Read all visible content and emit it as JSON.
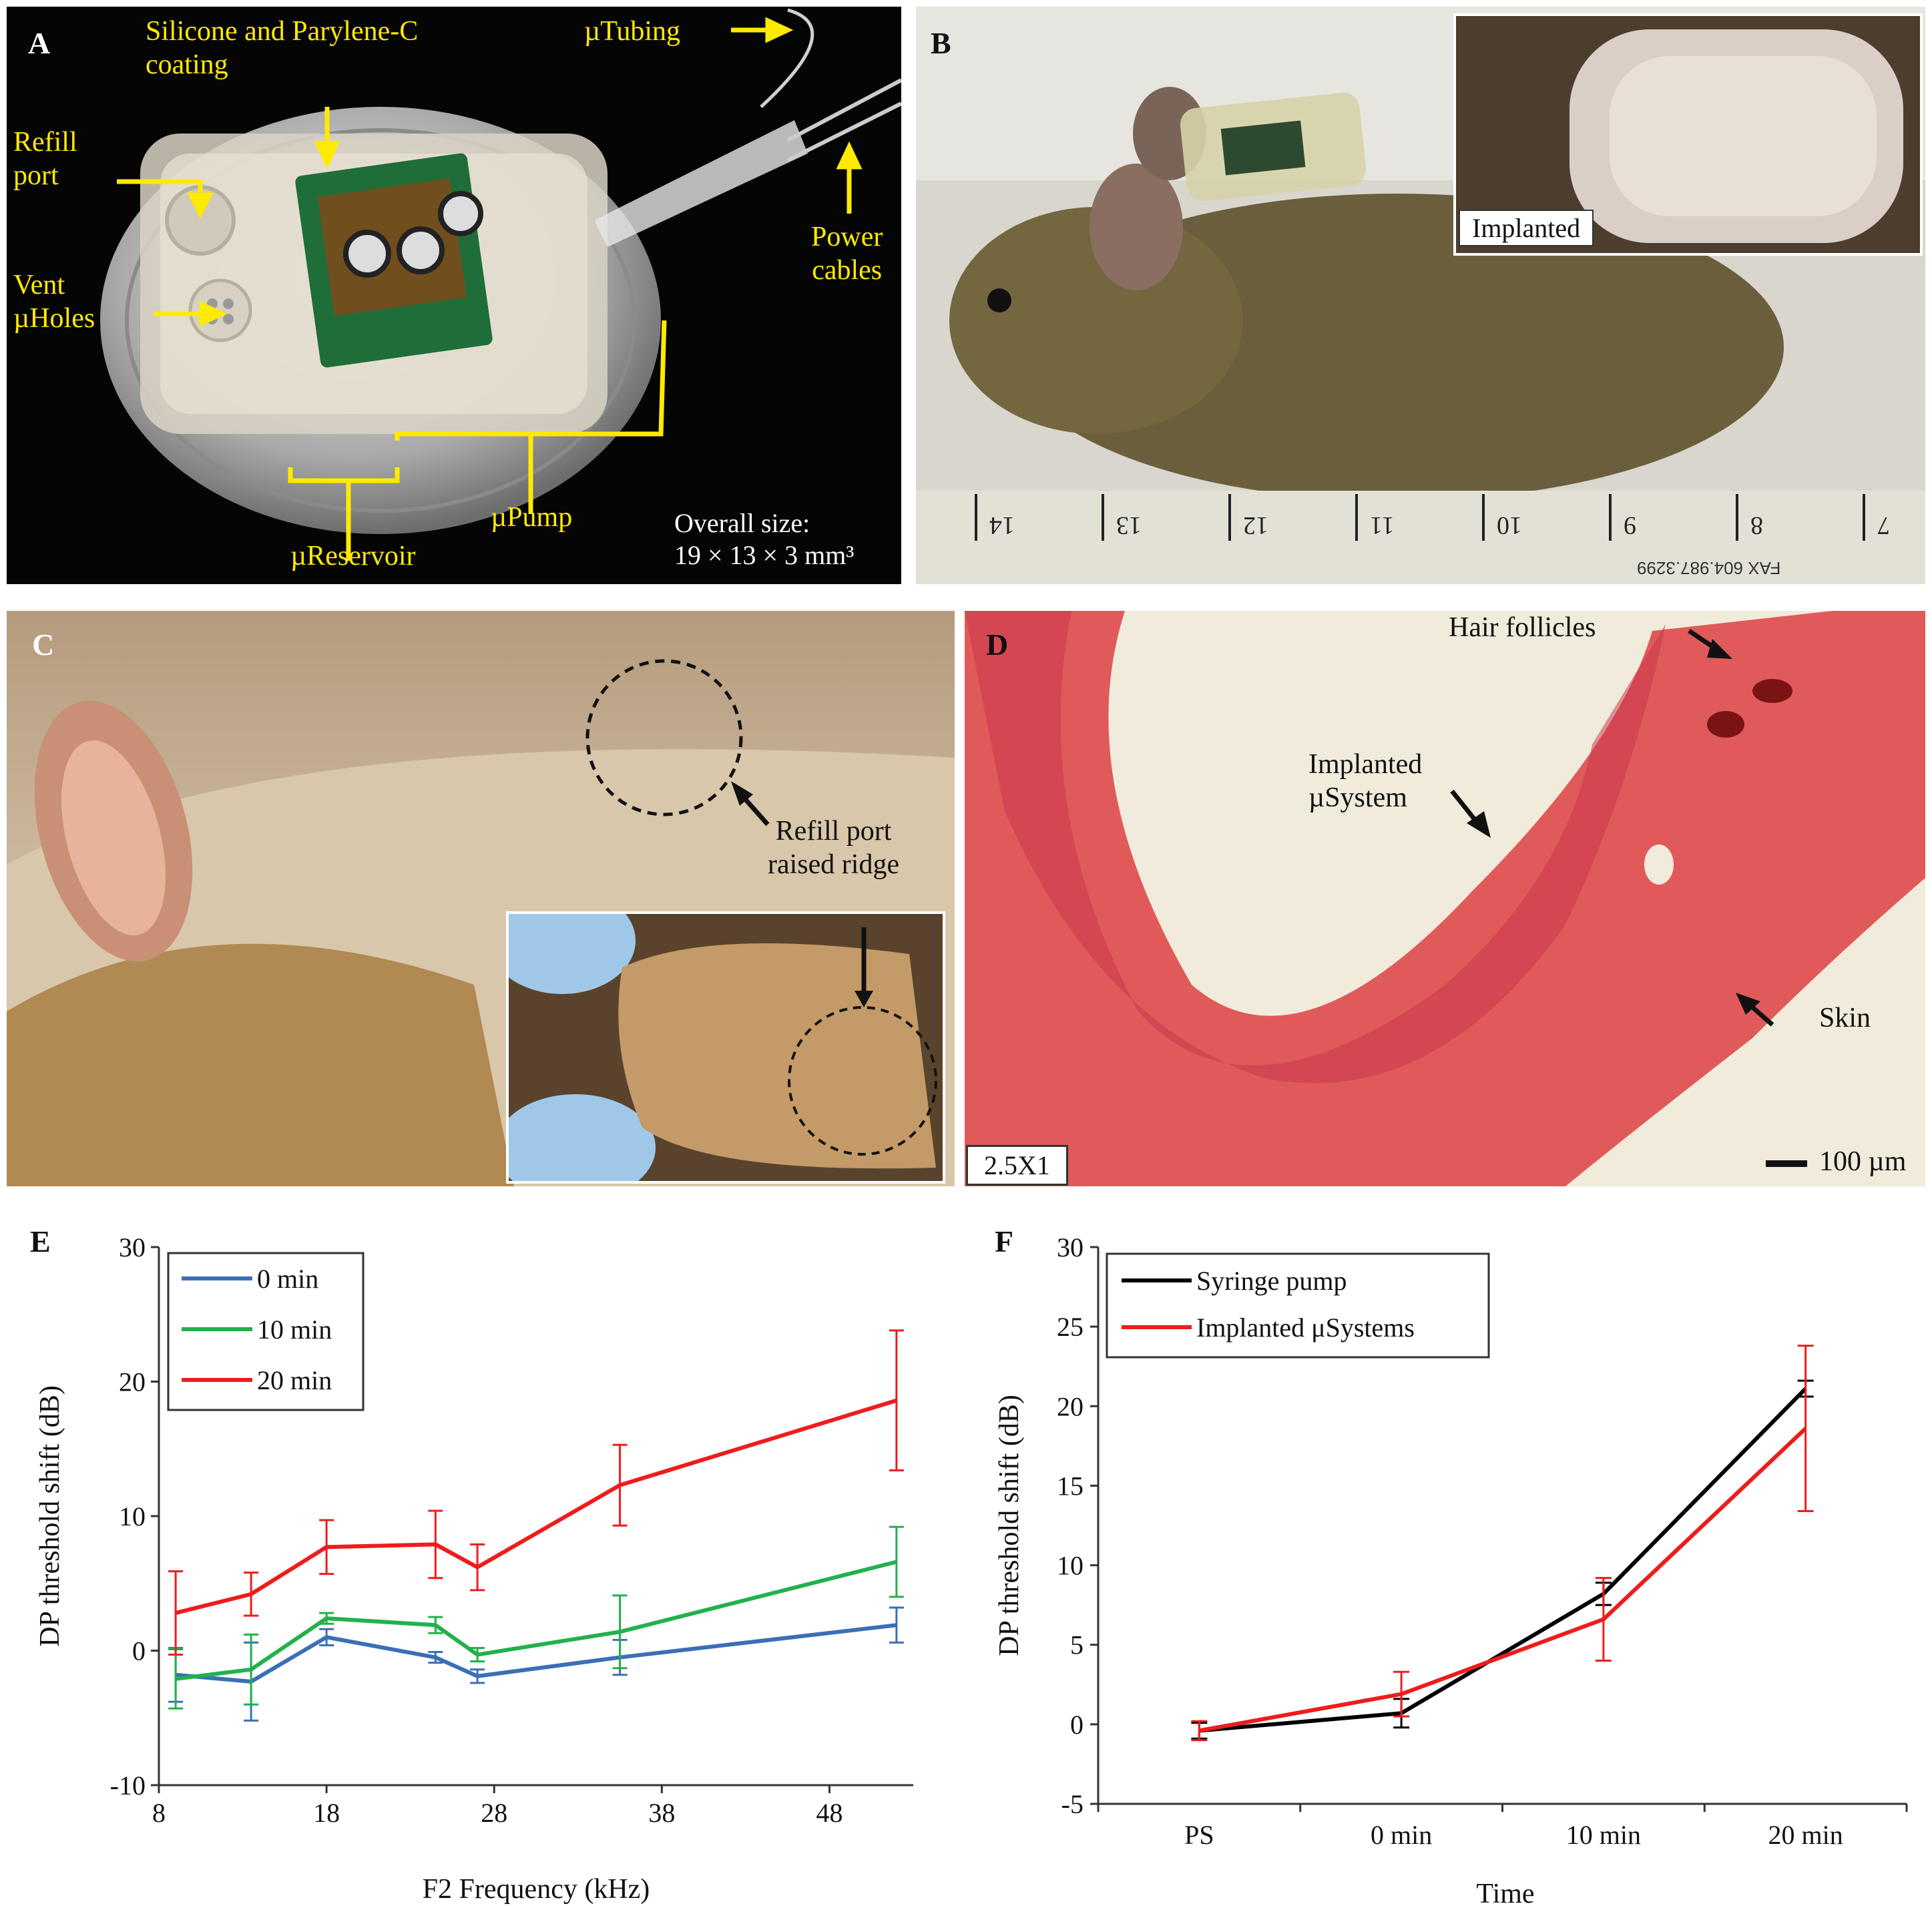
{
  "panels": {
    "A": {
      "label": "A",
      "coating": "Silicone and Parylene-C",
      "coating2": "coating",
      "tubing": "µTubing",
      "refill1": "Refill",
      "refill2": "port",
      "vent1": "Vent",
      "vent2": "µHoles",
      "power1": "Power",
      "power2": "cables",
      "pump": "µPump",
      "reservoir": "µReservoir",
      "size1": "Overall size:",
      "size2": "19 × 13 × 3 mm³"
    },
    "B": {
      "label": "B",
      "implanted": "Implanted",
      "ruler_marks": [
        "14",
        "13",
        "12",
        "11",
        "10",
        "9",
        "8",
        "7"
      ],
      "ruler_note": "FAX 604.987.3299"
    },
    "C": {
      "label": "C",
      "note1": "Refill port",
      "note2": "raised ridge"
    },
    "D": {
      "label": "D",
      "hair": "Hair follicles",
      "sys1": "Implanted",
      "sys2": "µSystem",
      "skin": "Skin",
      "mag": "2.5X1",
      "scale": "100 µm"
    }
  },
  "colors": {
    "blue": "#3b6fb6",
    "green": "#22b14c",
    "red": "#ee1c1c",
    "black": "#000000"
  },
  "chart_data": [
    {
      "id": "E",
      "label": "E",
      "type": "line",
      "xlabel": "F2 Frequency (kHz)",
      "ylabel": "DP threshold shift (dB)",
      "xlim": [
        8,
        53
      ],
      "ylim": [
        -10,
        30
      ],
      "xticks": [
        8,
        18,
        28,
        38,
        48
      ],
      "yticks": [
        -10,
        0,
        10,
        20,
        30
      ],
      "x": [
        9,
        13.5,
        18,
        24.5,
        27,
        35.5,
        52
      ],
      "series": [
        {
          "name": "0 min",
          "color": "#3b6fb6",
          "values": [
            -1.8,
            -2.3,
            1.0,
            -0.5,
            -1.9,
            -0.5,
            1.9
          ],
          "errors": [
            2.0,
            2.9,
            0.6,
            0.4,
            0.5,
            1.3,
            1.3
          ]
        },
        {
          "name": "10 min",
          "color": "#22b14c",
          "values": [
            -2.1,
            -1.4,
            2.4,
            1.9,
            -0.3,
            1.4,
            6.6
          ],
          "errors": [
            2.2,
            2.6,
            0.4,
            0.6,
            0.5,
            2.7,
            2.6
          ]
        },
        {
          "name": "20 min",
          "color": "#ee1c1c",
          "values": [
            2.8,
            4.2,
            7.7,
            7.9,
            6.2,
            12.3,
            18.6
          ],
          "errors": [
            3.1,
            1.6,
            2.0,
            2.5,
            1.7,
            3.0,
            5.2
          ]
        }
      ]
    },
    {
      "id": "F",
      "label": "F",
      "type": "line",
      "xlabel": "Time",
      "ylabel": "DP threshold shift (dB)",
      "categories": [
        "PS",
        "0 min",
        "10 min",
        "20 min"
      ],
      "ylim": [
        -5,
        30
      ],
      "yticks": [
        -5,
        0,
        5,
        10,
        15,
        20,
        25,
        30
      ],
      "series": [
        {
          "name": "Syringe pump",
          "color": "#000000",
          "values": [
            -0.4,
            0.7,
            8.2,
            21.1
          ],
          "errors": [
            0.5,
            0.9,
            0.7,
            0.5
          ]
        },
        {
          "name": "Implanted μSystems",
          "color": "#ee1c1c",
          "values": [
            -0.4,
            1.9,
            6.6,
            18.6
          ],
          "errors": [
            0.6,
            1.4,
            2.6,
            5.2
          ]
        }
      ]
    }
  ]
}
